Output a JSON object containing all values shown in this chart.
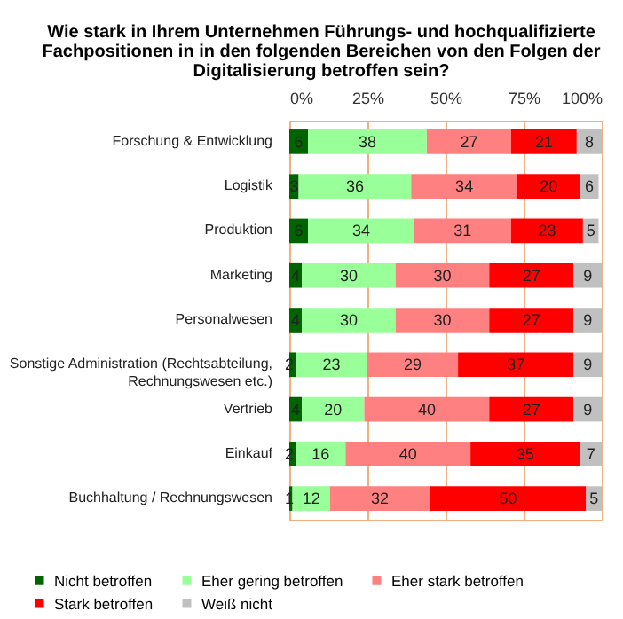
{
  "chart_data": {
    "type": "bar",
    "orientation": "horizontal",
    "stacked": true,
    "data_labels": true,
    "grid": "x",
    "legend": "bottom",
    "title": "Wie stark in Ihrem Unternehmen Führungs- und hochqualifizierte Fachpositionen in in den folgenden Bereichen von den Folgen der Digitalisierung betroffen sein?",
    "categories": [
      "Forschung & Entwicklung",
      "Logistik",
      "Produktion",
      "Marketing",
      "Personalwesen",
      "Sonstige Administration (Rechtsabteilung, Rechnungswesen etc.)",
      "Vertrieb",
      "Einkauf",
      "Buchhaltung / Rechnungswesen"
    ],
    "xlim": [
      0,
      100
    ],
    "xticks": [
      {
        "value": 0,
        "label": "0%"
      },
      {
        "value": 25,
        "label": "25%"
      },
      {
        "value": 50,
        "label": "50%"
      },
      {
        "value": 75,
        "label": "75%"
      },
      {
        "value": 100,
        "label": "100%"
      }
    ],
    "series": [
      {
        "name": "Nicht betroffen",
        "color": "#006400",
        "values": [
          6,
          3,
          6,
          4,
          4,
          2,
          4,
          2,
          1
        ]
      },
      {
        "name": "Eher gering betroffen",
        "color": "#99ff99",
        "values": [
          38,
          36,
          34,
          30,
          30,
          23,
          20,
          16,
          12
        ]
      },
      {
        "name": "Eher stark betroffen",
        "color": "#ff8080",
        "values": [
          27,
          34,
          31,
          30,
          30,
          29,
          40,
          40,
          32
        ]
      },
      {
        "name": "Stark betroffen",
        "color": "#ff0000",
        "values": [
          21,
          20,
          23,
          27,
          27,
          37,
          27,
          35,
          50
        ]
      },
      {
        "name": "Weiß nicht",
        "color": "#c0c0c0",
        "values": [
          8,
          6,
          5,
          9,
          9,
          9,
          9,
          7,
          5
        ]
      }
    ]
  }
}
